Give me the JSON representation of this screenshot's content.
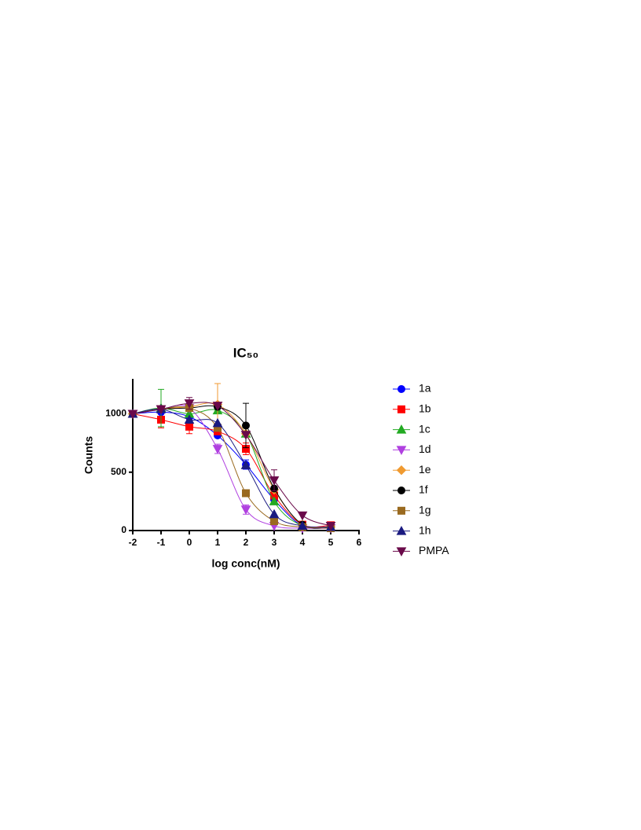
{
  "chart_data": {
    "type": "dose-response",
    "title": "IC₅₀",
    "x_label": "log conc(nM)",
    "y_label": "Counts",
    "x": [
      -2,
      -1,
      0,
      1,
      2,
      3,
      4,
      5
    ],
    "xlim": [
      -2,
      6
    ],
    "xticks": [
      -2,
      -1,
      0,
      1,
      2,
      3,
      4,
      5,
      6
    ],
    "ylim": [
      0,
      1300
    ],
    "yticks": [
      0,
      500,
      1000
    ],
    "legend": "right",
    "series": [
      {
        "name": "1a",
        "color": "#0000ff",
        "marker": "circle",
        "values": [
          1000,
          1015,
          975,
          815,
          565,
          265,
          40,
          25
        ],
        "errors": [
          null,
          null,
          null,
          null,
          40,
          30,
          null,
          null
        ]
      },
      {
        "name": "1b",
        "color": "#ff0000",
        "marker": "square",
        "values": [
          1000,
          950,
          890,
          850,
          700,
          300,
          50,
          45
        ],
        "errors": [
          null,
          70,
          60,
          null,
          50,
          null,
          null,
          null
        ]
      },
      {
        "name": "1c",
        "color": "#22aa22",
        "marker": "triangle-up",
        "values": [
          1000,
          1050,
          1000,
          1030,
          830,
          250,
          40,
          30
        ],
        "errors": [
          null,
          160,
          80,
          null,
          null,
          null,
          null,
          null
        ]
      },
      {
        "name": "1d",
        "color": "#b040e0",
        "marker": "triangle-down",
        "values": [
          1000,
          1040,
          1050,
          700,
          180,
          40,
          20,
          20
        ],
        "errors": [
          null,
          null,
          null,
          40,
          40,
          null,
          null,
          null
        ]
      },
      {
        "name": "1e",
        "color": "#f09a30",
        "marker": "diamond",
        "values": [
          1000,
          1040,
          1060,
          1080,
          830,
          350,
          50,
          30
        ],
        "errors": [
          null,
          null,
          null,
          180,
          null,
          null,
          null,
          null
        ]
      },
      {
        "name": "1f",
        "color": "#000000",
        "marker": "circle",
        "values": [
          1000,
          1040,
          1050,
          1060,
          900,
          360,
          50,
          30
        ],
        "errors": [
          null,
          null,
          null,
          null,
          190,
          null,
          null,
          null
        ]
      },
      {
        "name": "1g",
        "color": "#9a6a20",
        "marker": "square",
        "values": [
          1000,
          1040,
          1050,
          880,
          320,
          80,
          30,
          20
        ],
        "errors": [
          null,
          null,
          null,
          null,
          null,
          null,
          null,
          null
        ]
      },
      {
        "name": "1h",
        "color": "#1a1a80",
        "marker": "triangle-up",
        "values": [
          1000,
          1040,
          950,
          920,
          560,
          140,
          40,
          30
        ],
        "errors": [
          null,
          null,
          null,
          null,
          null,
          null,
          null,
          null
        ]
      },
      {
        "name": "PMPA",
        "color": "#6a0a4a",
        "marker": "triangle-down",
        "values": [
          1000,
          1040,
          1090,
          1070,
          820,
          430,
          130,
          40
        ],
        "errors": [
          null,
          null,
          50,
          null,
          null,
          90,
          null,
          null
        ]
      }
    ]
  }
}
